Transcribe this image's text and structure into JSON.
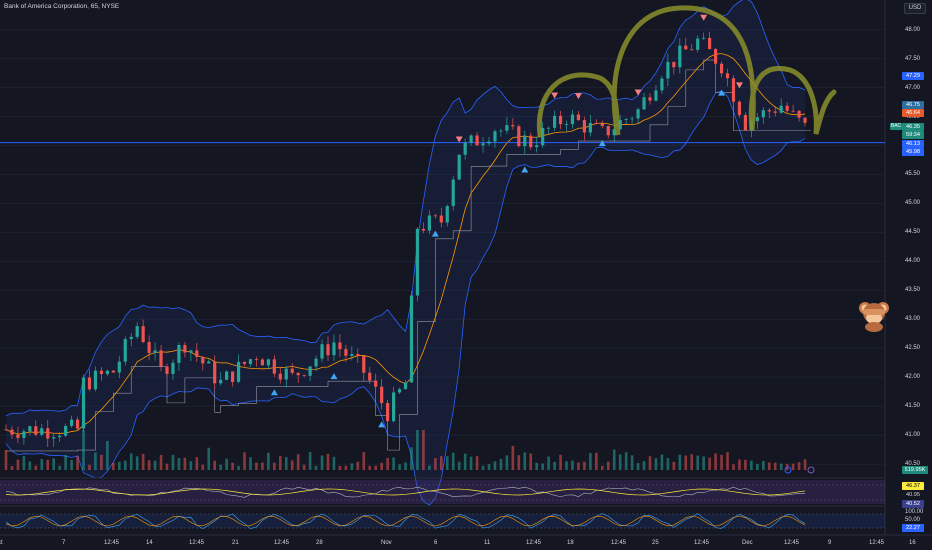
{
  "header": {
    "title": "Bank of America Corporation, 65, NYSE",
    "currency_button": "USD"
  },
  "symbol_badge": "BAC",
  "price_axis": {
    "ticks": [
      "48.00",
      "47.50",
      "47.00",
      "46.50",
      "46.00",
      "45.50",
      "45.00",
      "44.50",
      "44.00",
      "43.50",
      "43.00",
      "42.50",
      "42.00",
      "41.50",
      "41.00",
      "40.50"
    ],
    "tags": [
      {
        "text": "47.29",
        "color": "#2962ff"
      },
      {
        "text": "46.75",
        "color": "#2c6e9e"
      },
      {
        "text": "46.64",
        "color": "#e65a2b"
      },
      {
        "text": "46.35",
        "color": "#1e8a7c"
      },
      {
        "text": "59:34",
        "color": "#1e8a7c"
      },
      {
        "text": "46.13",
        "color": "#2962ff"
      },
      {
        "text": "45.98",
        "color": "#2962ff"
      }
    ]
  },
  "volume_tag": {
    "text": "519.95K",
    "color": "#1e8a7c"
  },
  "indicator1": {
    "tags": [
      {
        "text": "46.37",
        "color": "#ffeb3b",
        "fg": "#000"
      },
      {
        "text": "40.95",
        "color": "#141722",
        "fg": "#d1d4dc"
      },
      {
        "text": "40.52",
        "color": "#3a3f8e",
        "fg": "#fff"
      }
    ]
  },
  "indicator2": {
    "ticks": [
      "100.00",
      "50.00"
    ],
    "tags": [
      {
        "text": "22.27",
        "color": "#2962ff",
        "fg": "#fff"
      }
    ]
  },
  "time_axis": [
    "ct",
    "7",
    "12:45",
    "14",
    "12:45",
    "21",
    "12:45",
    "28",
    "Nov",
    "6",
    "11",
    "12:45",
    "18",
    "12:45",
    "25",
    "12:45",
    "Dec",
    "12:45",
    "9",
    "12:45",
    "16"
  ],
  "colors": {
    "up": "#26a69a",
    "down": "#ef5350",
    "band": "#2962ff",
    "basis": "#ff9800",
    "stop": "#9598a1",
    "support": "#2962ff",
    "annotation": "#8a8f2a",
    "up_arrow": "#42a5f5",
    "down_arrow": "#f77c80"
  },
  "emoji_icon": "see-no-evil-monkey-icon",
  "chart_data": {
    "type": "candlestick",
    "y_range": [
      40.4,
      48.2
    ],
    "support_level": 46.05,
    "anchors": [
      [
        0,
        41.1
      ],
      [
        12,
        41.1
      ],
      [
        13,
        41.9
      ],
      [
        18,
        42.1
      ],
      [
        22,
        42.9
      ],
      [
        26,
        42.1
      ],
      [
        30,
        42.6
      ],
      [
        36,
        41.9
      ],
      [
        42,
        42.4
      ],
      [
        48,
        42.0
      ],
      [
        55,
        42.6
      ],
      [
        60,
        42.1
      ],
      [
        64,
        41.4
      ],
      [
        67,
        41.9
      ],
      [
        69,
        44.6
      ],
      [
        73,
        44.7
      ],
      [
        76,
        45.9
      ],
      [
        82,
        46.3
      ],
      [
        88,
        46.05
      ],
      [
        94,
        46.5
      ],
      [
        100,
        46.2
      ],
      [
        106,
        46.6
      ],
      [
        110,
        47.3
      ],
      [
        116,
        47.8
      ],
      [
        120,
        47.4
      ],
      [
        124,
        46.4
      ],
      [
        130,
        46.7
      ],
      [
        134,
        46.3
      ]
    ],
    "buy_signals": [
      45,
      55,
      63,
      72,
      87,
      100,
      120
    ],
    "sell_signals": [
      76,
      92,
      96,
      106,
      117,
      123
    ]
  }
}
